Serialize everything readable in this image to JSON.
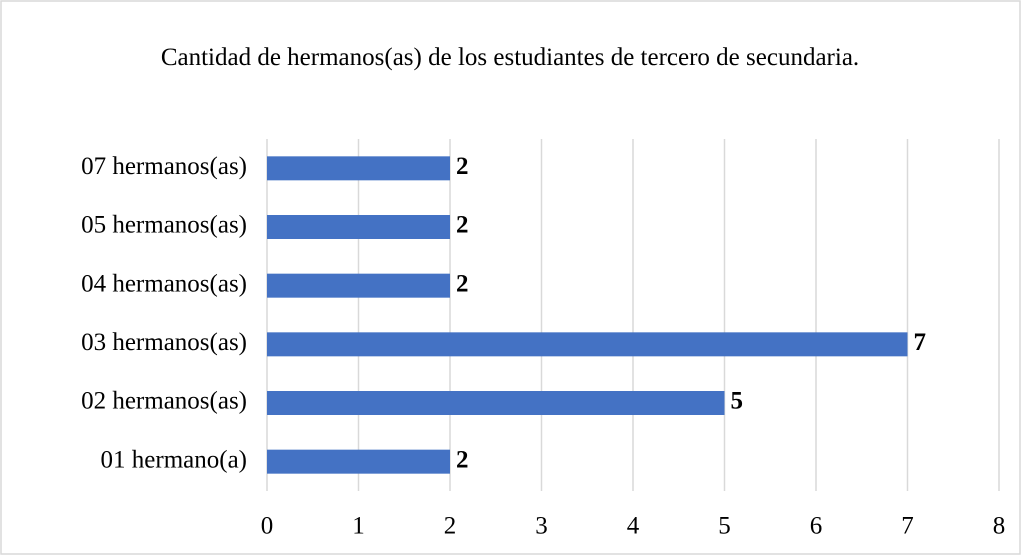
{
  "chart_data": {
    "type": "bar",
    "orientation": "horizontal",
    "title": "Cantidad de hermanos(as)  de los estudiantes de tercero de secundaria.",
    "categories": [
      "07 hermanos(as)",
      "05 hermanos(as)",
      "04 hermanos(as)",
      "03 hermanos(as)",
      "02 hermanos(as)",
      "01 hermano(a)"
    ],
    "values": [
      2,
      2,
      2,
      7,
      5,
      2
    ],
    "color": "#4472c4",
    "xlim": [
      0,
      8
    ],
    "xticks": [
      0,
      1,
      2,
      3,
      4,
      5,
      6,
      7,
      8
    ],
    "grid": true
  }
}
